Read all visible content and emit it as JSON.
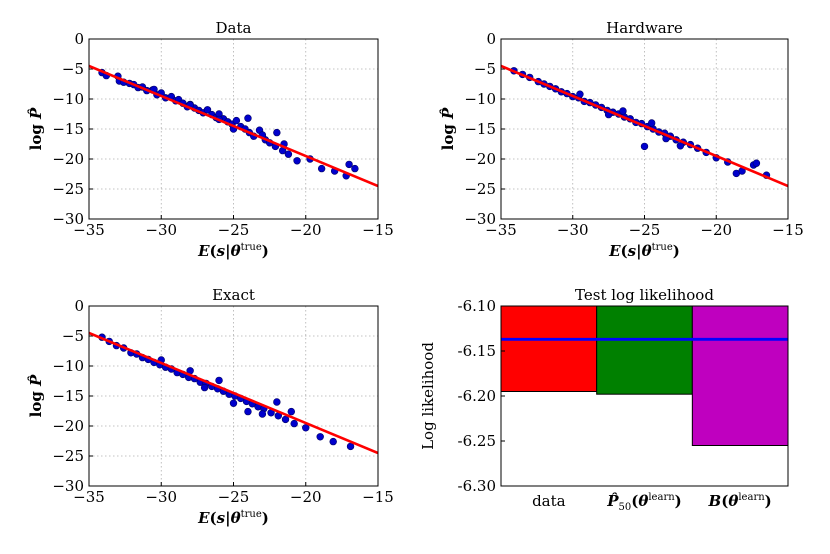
{
  "colors": {
    "points": "#0000cc",
    "point_edge": "#000066",
    "fit_line": "#ff0000",
    "bar_data": "#ff0000",
    "bar_hardware": "#008000",
    "bar_exact": "#bf00bf",
    "reference_line": "#0000ff"
  },
  "chart_data": [
    {
      "type": "scatter",
      "title": "Data",
      "xlabel": "E(s|θ^true)",
      "ylabel": "log P̂",
      "xlim": [
        -35,
        -15
      ],
      "ylim": [
        -30,
        0
      ],
      "xticks": [
        -35,
        -30,
        -25,
        -20,
        -15
      ],
      "yticks": [
        0,
        -5,
        -10,
        -15,
        -20,
        -25,
        -30
      ],
      "xtick_labels": [
        "−35",
        "−30",
        "−25",
        "−20",
        "−15"
      ],
      "ytick_labels": [
        "0",
        "−5",
        "−10",
        "−15",
        "−20",
        "−25",
        "−30"
      ],
      "grid": true,
      "fit_line": {
        "x": [
          -35,
          -15
        ],
        "y": [
          -4.5,
          -24.5
        ]
      },
      "points": [
        [
          -34.1,
          -5.6
        ],
        [
          -33.8,
          -6.1
        ],
        [
          -33.0,
          -6.2
        ],
        [
          -32.9,
          -7.0
        ],
        [
          -32.6,
          -7.2
        ],
        [
          -32.2,
          -7.4
        ],
        [
          -31.9,
          -7.6
        ],
        [
          -31.6,
          -8.1
        ],
        [
          -31.3,
          -8.0
        ],
        [
          -31.0,
          -8.6
        ],
        [
          -30.6,
          -8.5
        ],
        [
          -30.3,
          -9.3
        ],
        [
          -30.0,
          -9.0
        ],
        [
          -29.7,
          -9.8
        ],
        [
          -29.3,
          -9.6
        ],
        [
          -29.0,
          -10.3
        ],
        [
          -28.8,
          -10.1
        ],
        [
          -28.5,
          -10.7
        ],
        [
          -28.2,
          -11.3
        ],
        [
          -28.0,
          -10.9
        ],
        [
          -27.7,
          -11.5
        ],
        [
          -27.4,
          -11.9
        ],
        [
          -27.1,
          -12.3
        ],
        [
          -26.8,
          -11.8
        ],
        [
          -26.5,
          -12.6
        ],
        [
          -26.2,
          -13.1
        ],
        [
          -26.0,
          -12.5
        ],
        [
          -25.7,
          -13.3
        ],
        [
          -25.4,
          -13.8
        ],
        [
          -25.1,
          -14.2
        ],
        [
          -24.8,
          -13.6
        ],
        [
          -24.5,
          -14.6
        ],
        [
          -24.2,
          -15.0
        ],
        [
          -23.9,
          -15.6
        ],
        [
          -23.6,
          -16.2
        ],
        [
          -23.2,
          -15.2
        ],
        [
          -22.8,
          -16.8
        ],
        [
          -22.5,
          -17.3
        ],
        [
          -22.1,
          -17.9
        ],
        [
          -21.6,
          -18.6
        ],
        [
          -21.2,
          -19.2
        ],
        [
          -20.6,
          -20.3
        ],
        [
          -19.7,
          -20.0
        ],
        [
          -18.9,
          -21.6
        ],
        [
          -18.0,
          -22.0
        ],
        [
          -17.2,
          -22.8
        ],
        [
          -16.6,
          -21.6
        ],
        [
          -17.0,
          -20.9
        ],
        [
          -28.0,
          -11.0
        ],
        [
          -26.0,
          -13.4
        ],
        [
          -24.0,
          -13.2
        ],
        [
          -22.0,
          -15.6
        ],
        [
          -30.5,
          -8.4
        ],
        [
          -25.0,
          -15.0
        ],
        [
          -23.0,
          -16.0
        ],
        [
          -21.5,
          -17.5
        ]
      ]
    },
    {
      "type": "scatter",
      "title": "Hardware",
      "xlabel": "E(s|θ^true)",
      "ylabel": "log P̂",
      "xlim": [
        -35,
        -15
      ],
      "ylim": [
        -30,
        0
      ],
      "xticks": [
        -35,
        -30,
        -25,
        -20,
        -15
      ],
      "yticks": [
        0,
        -5,
        -10,
        -15,
        -20,
        -25,
        -30
      ],
      "xtick_labels": [
        "−35",
        "−30",
        "−25",
        "−20",
        "−15"
      ],
      "ytick_labels": [
        "0",
        "−5",
        "−10",
        "−15",
        "−20",
        "−25",
        "−30"
      ],
      "grid": true,
      "fit_line": {
        "x": [
          -35,
          -15
        ],
        "y": [
          -4.5,
          -24.5
        ]
      },
      "points": [
        [
          -34.1,
          -5.3
        ],
        [
          -33.5,
          -5.9
        ],
        [
          -33.0,
          -6.4
        ],
        [
          -32.4,
          -7.1
        ],
        [
          -32.0,
          -7.5
        ],
        [
          -31.6,
          -7.9
        ],
        [
          -31.2,
          -8.3
        ],
        [
          -30.8,
          -8.8
        ],
        [
          -30.4,
          -9.1
        ],
        [
          -30.0,
          -9.6
        ],
        [
          -29.6,
          -9.8
        ],
        [
          -29.2,
          -10.4
        ],
        [
          -28.8,
          -10.6
        ],
        [
          -28.4,
          -11.0
        ],
        [
          -28.0,
          -11.4
        ],
        [
          -27.6,
          -11.9
        ],
        [
          -27.2,
          -12.2
        ],
        [
          -26.8,
          -12.5
        ],
        [
          -26.4,
          -13.0
        ],
        [
          -26.0,
          -13.3
        ],
        [
          -25.6,
          -13.9
        ],
        [
          -25.2,
          -14.1
        ],
        [
          -24.8,
          -14.6
        ],
        [
          -24.4,
          -15.0
        ],
        [
          -24.0,
          -15.5
        ],
        [
          -23.6,
          -15.7
        ],
        [
          -23.2,
          -16.2
        ],
        [
          -22.8,
          -16.8
        ],
        [
          -22.3,
          -17.2
        ],
        [
          -21.8,
          -17.6
        ],
        [
          -21.3,
          -18.2
        ],
        [
          -20.7,
          -18.9
        ],
        [
          -20.0,
          -19.8
        ],
        [
          -19.2,
          -20.5
        ],
        [
          -18.6,
          -22.4
        ],
        [
          -18.2,
          -22.0
        ],
        [
          -17.4,
          -21.0
        ],
        [
          -17.2,
          -20.7
        ],
        [
          -16.5,
          -22.7
        ],
        [
          -25.0,
          -17.9
        ],
        [
          -26.5,
          -12.0
        ],
        [
          -24.5,
          -14.0
        ],
        [
          -22.5,
          -17.8
        ],
        [
          -29.5,
          -9.2
        ],
        [
          -27.5,
          -12.6
        ],
        [
          -23.5,
          -16.6
        ]
      ]
    },
    {
      "type": "scatter",
      "title": "Exact",
      "xlabel": "E(s|θ^true)",
      "ylabel": "log P̂",
      "xlim": [
        -35,
        -15
      ],
      "ylim": [
        -30,
        0
      ],
      "xticks": [
        -35,
        -30,
        -25,
        -20,
        -15
      ],
      "yticks": [
        0,
        -5,
        -10,
        -15,
        -20,
        -25,
        -30
      ],
      "xtick_labels": [
        "−35",
        "−30",
        "−25",
        "−20",
        "−15"
      ],
      "ytick_labels": [
        "0",
        "−5",
        "−10",
        "−15",
        "−20",
        "−25",
        "−30"
      ],
      "grid": true,
      "fit_line": {
        "x": [
          -35,
          -15
        ],
        "y": [
          -4.5,
          -24.5
        ]
      },
      "points": [
        [
          -34.1,
          -5.2
        ],
        [
          -33.6,
          -5.9
        ],
        [
          -33.1,
          -6.6
        ],
        [
          -32.6,
          -7.0
        ],
        [
          -32.1,
          -7.8
        ],
        [
          -31.7,
          -8.0
        ],
        [
          -31.3,
          -8.6
        ],
        [
          -30.9,
          -8.9
        ],
        [
          -30.5,
          -9.4
        ],
        [
          -30.1,
          -9.8
        ],
        [
          -29.7,
          -10.2
        ],
        [
          -29.3,
          -10.5
        ],
        [
          -28.9,
          -11.1
        ],
        [
          -28.5,
          -11.4
        ],
        [
          -28.1,
          -11.9
        ],
        [
          -27.7,
          -12.1
        ],
        [
          -27.3,
          -12.7
        ],
        [
          -26.9,
          -12.9
        ],
        [
          -26.5,
          -13.4
        ],
        [
          -26.1,
          -13.8
        ],
        [
          -25.7,
          -14.2
        ],
        [
          -25.3,
          -14.7
        ],
        [
          -24.9,
          -15.0
        ],
        [
          -24.5,
          -15.4
        ],
        [
          -24.1,
          -15.9
        ],
        [
          -23.7,
          -16.3
        ],
        [
          -23.3,
          -16.8
        ],
        [
          -22.9,
          -17.1
        ],
        [
          -22.4,
          -17.8
        ],
        [
          -21.9,
          -18.3
        ],
        [
          -21.4,
          -18.9
        ],
        [
          -20.8,
          -19.6
        ],
        [
          -20.0,
          -20.3
        ],
        [
          -19.0,
          -21.8
        ],
        [
          -18.1,
          -22.6
        ],
        [
          -16.9,
          -23.4
        ],
        [
          -22.0,
          -16.0
        ],
        [
          -24.0,
          -17.6
        ],
        [
          -26.0,
          -12.4
        ],
        [
          -28.0,
          -10.8
        ],
        [
          -30.0,
          -9.0
        ],
        [
          -23.0,
          -18.0
        ],
        [
          -21.0,
          -17.6
        ],
        [
          -27.0,
          -13.6
        ],
        [
          -25.0,
          -16.2
        ]
      ]
    },
    {
      "type": "bar",
      "title": "Test log likelihood",
      "ylabel": "Log likelihood",
      "categories": [
        "data",
        "P̂50(θ^learn)",
        "B(θ^learn)"
      ],
      "values": [
        -6.195,
        -6.198,
        -6.255
      ],
      "bar_top": -6.1,
      "reference_line": -6.137,
      "ylim": [
        -6.3,
        -6.1
      ],
      "yticks": [
        -6.1,
        -6.15,
        -6.2,
        -6.25,
        -6.3
      ],
      "ytick_labels": [
        "-6.10",
        "-6.15",
        "-6.20",
        "-6.25",
        "-6.30"
      ]
    }
  ]
}
